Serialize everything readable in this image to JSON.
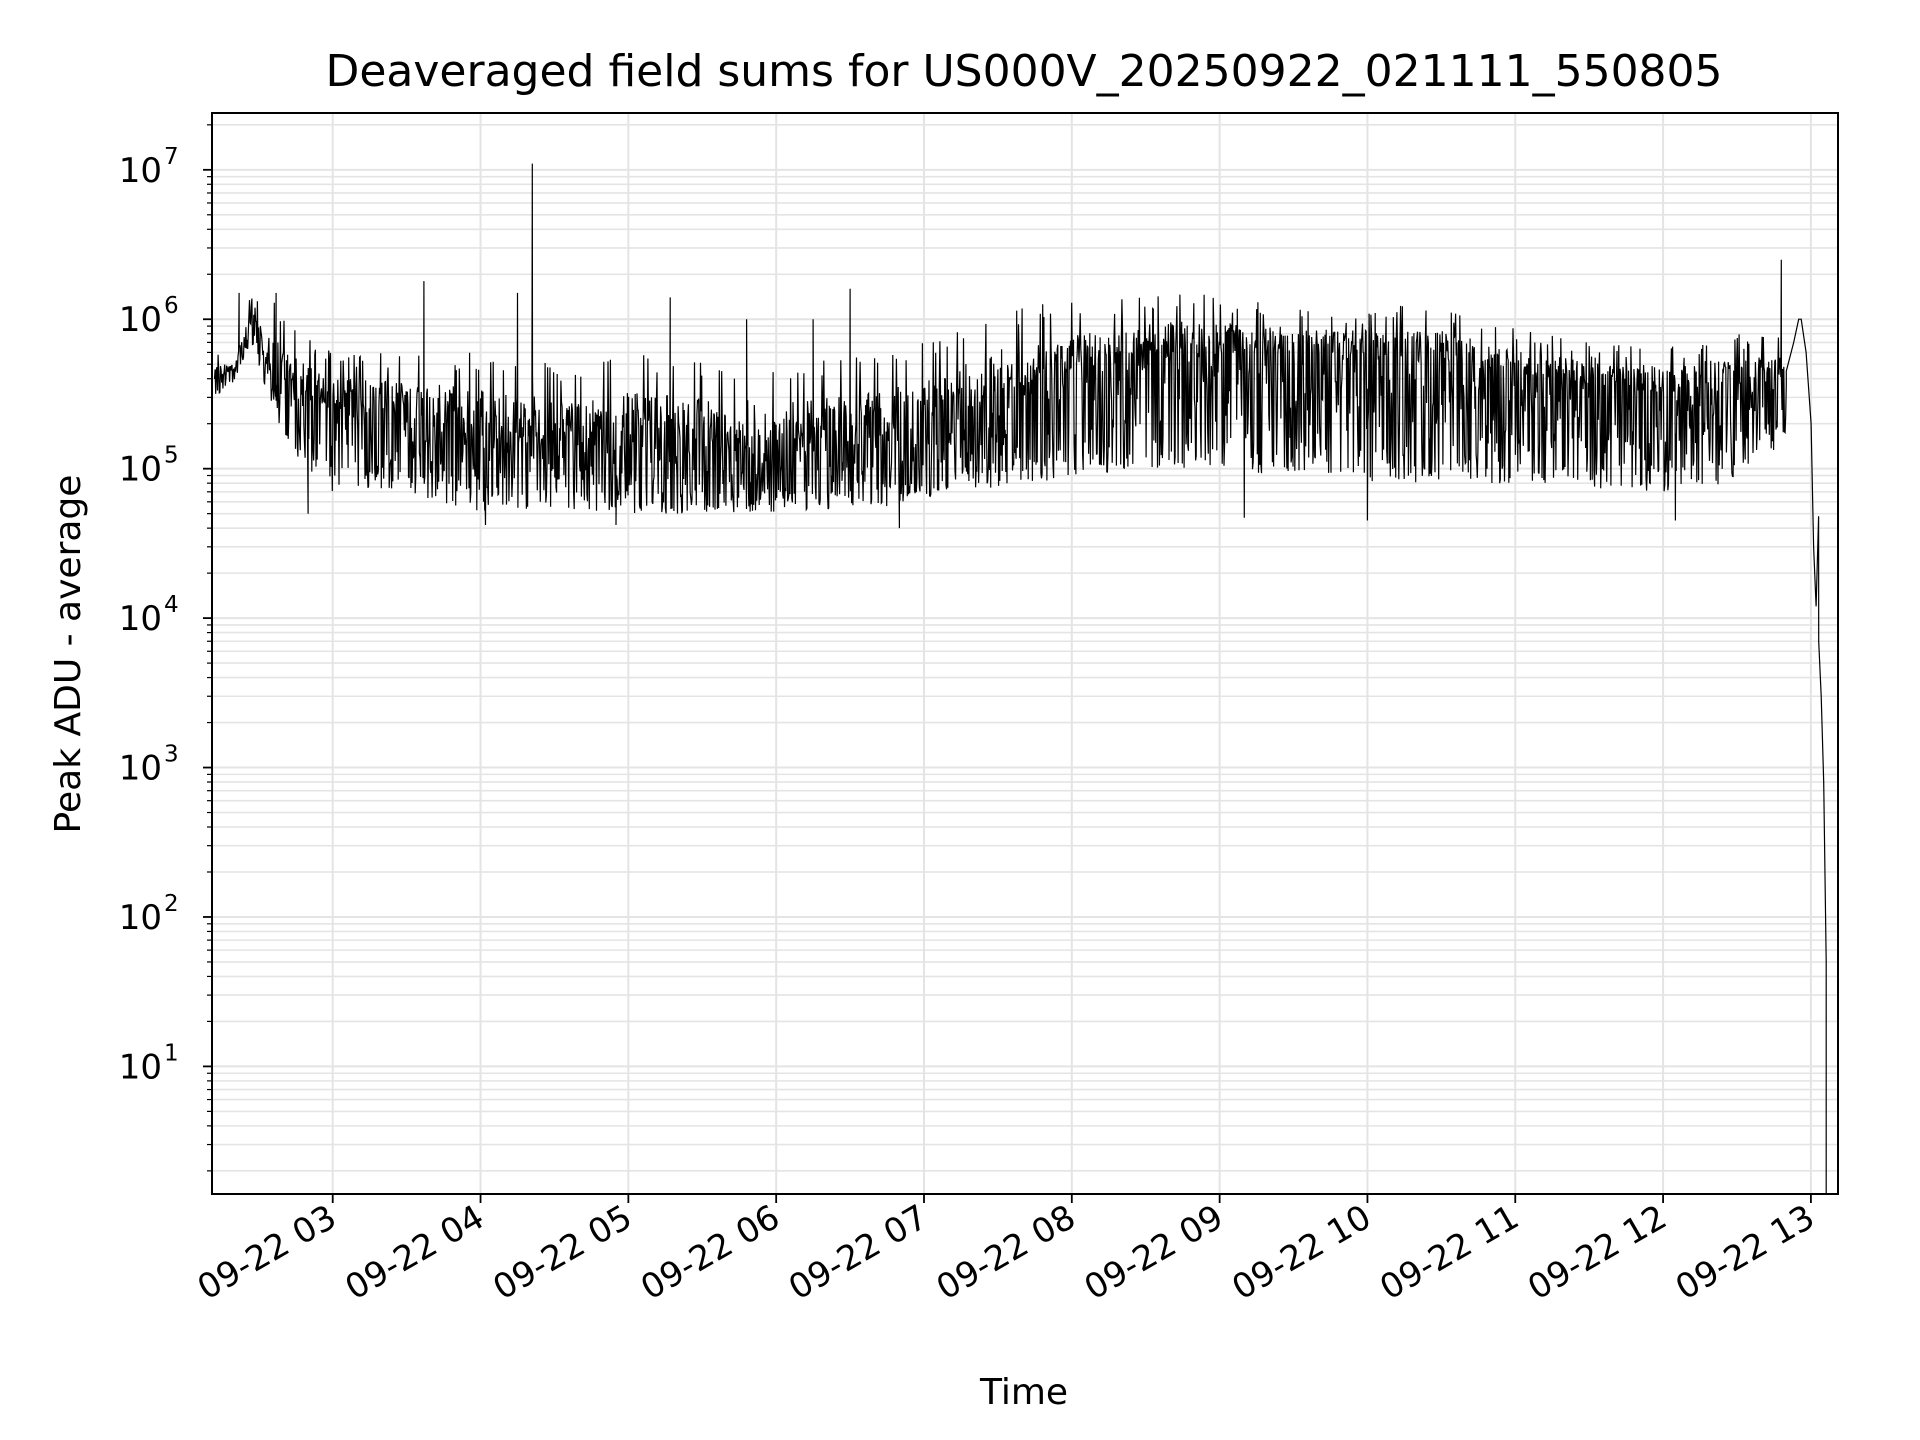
{
  "chart_data": {
    "type": "line",
    "title": "Deaveraged field sums for US000V_20250922_021111_550805",
    "xlabel": "Time",
    "ylabel": "Peak ADU - average",
    "yscale": "log",
    "xlim": [
      "2025-09-22 02:11",
      "2025-09-22 13:11"
    ],
    "ylim": [
      1.4,
      24000000
    ],
    "grid": "major and minor, both axes",
    "x_ticks": [
      "09-22 03",
      "09-22 04",
      "09-22 05",
      "09-22 06",
      "09-22 07",
      "09-22 08",
      "09-22 09",
      "09-22 10",
      "09-22 11",
      "09-22 12",
      "09-22 13"
    ],
    "y_ticks": [
      {
        "base": "10",
        "exp": "1",
        "value": 10
      },
      {
        "base": "10",
        "exp": "2",
        "value": 100
      },
      {
        "base": "10",
        "exp": "3",
        "value": 1000
      },
      {
        "base": "10",
        "exp": "4",
        "value": 10000
      },
      {
        "base": "10",
        "exp": "5",
        "value": 100000
      },
      {
        "base": "10",
        "exp": "6",
        "value": 1000000
      },
      {
        "base": "10",
        "exp": "7",
        "value": 10000000
      }
    ],
    "series": [
      {
        "color": "#000000",
        "envelope": [
          {
            "t": "2025-09-22 02:12",
            "median": 400000,
            "low": 300000,
            "high": 600000
          },
          {
            "t": "2025-09-22 02:20",
            "median": 450000,
            "low": 380000,
            "high": 550000
          },
          {
            "t": "2025-09-22 02:27",
            "median": 1000000,
            "low": 700000,
            "high": 1500000
          },
          {
            "t": "2025-09-22 02:35",
            "median": 450000,
            "low": 250000,
            "high": 1400000
          },
          {
            "t": "2025-09-22 02:45",
            "median": 350000,
            "low": 120000,
            "high": 900000
          },
          {
            "t": "2025-09-22 03:00",
            "median": 250000,
            "low": 70000,
            "high": 600000
          },
          {
            "t": "2025-09-22 03:30",
            "median": 220000,
            "low": 70000,
            "high": 600000
          },
          {
            "t": "2025-09-22 04:00",
            "median": 180000,
            "low": 50000,
            "high": 600000
          },
          {
            "t": "2025-09-22 04:30",
            "median": 150000,
            "low": 55000,
            "high": 500000
          },
          {
            "t": "2025-09-22 05:00",
            "median": 150000,
            "low": 50000,
            "high": 600000
          },
          {
            "t": "2025-09-22 06:00",
            "median": 140000,
            "low": 50000,
            "high": 500000
          },
          {
            "t": "2025-09-22 06:45",
            "median": 160000,
            "low": 55000,
            "high": 600000
          },
          {
            "t": "2025-09-22 07:15",
            "median": 250000,
            "low": 70000,
            "high": 900000
          },
          {
            "t": "2025-09-22 07:45",
            "median": 400000,
            "low": 80000,
            "high": 1300000
          },
          {
            "t": "2025-09-22 08:00",
            "median": 450000,
            "low": 90000,
            "high": 1300000
          },
          {
            "t": "2025-09-22 08:45",
            "median": 600000,
            "low": 100000,
            "high": 1500000
          },
          {
            "t": "2025-09-22 09:30",
            "median": 550000,
            "low": 90000,
            "high": 1300000
          },
          {
            "t": "2025-09-22 10:00",
            "median": 550000,
            "low": 80000,
            "high": 1200000
          },
          {
            "t": "2025-09-22 10:30",
            "median": 500000,
            "low": 80000,
            "high": 1300000
          },
          {
            "t": "2025-09-22 11:00",
            "median": 420000,
            "low": 80000,
            "high": 900000
          },
          {
            "t": "2025-09-22 11:30",
            "median": 350000,
            "low": 70000,
            "high": 700000
          },
          {
            "t": "2025-09-22 12:00",
            "median": 320000,
            "low": 70000,
            "high": 700000
          },
          {
            "t": "2025-09-22 12:30",
            "median": 350000,
            "low": 80000,
            "high": 800000
          },
          {
            "t": "2025-09-22 12:50",
            "median": 400000,
            "low": 150000,
            "high": 800000
          }
        ],
        "spikes": [
          {
            "t": "2025-09-22 02:22",
            "value": 1500000
          },
          {
            "t": "2025-09-22 02:37",
            "value": 1500000
          },
          {
            "t": "2025-09-22 03:37",
            "value": 1800000
          },
          {
            "t": "2025-09-22 04:15",
            "value": 1500000
          },
          {
            "t": "2025-09-22 04:21",
            "value": 11000000
          },
          {
            "t": "2025-09-22 05:17",
            "value": 1400000
          },
          {
            "t": "2025-09-22 05:48",
            "value": 1000000
          },
          {
            "t": "2025-09-22 06:15",
            "value": 1000000
          },
          {
            "t": "2025-09-22 06:30",
            "value": 1600000
          },
          {
            "t": "2025-09-22 12:48",
            "value": 2500000
          }
        ],
        "dips": [
          {
            "t": "2025-09-22 02:50",
            "value": 50000
          },
          {
            "t": "2025-09-22 04:02",
            "value": 42000
          },
          {
            "t": "2025-09-22 04:55",
            "value": 42000
          },
          {
            "t": "2025-09-22 06:50",
            "value": 40000
          },
          {
            "t": "2025-09-22 09:10",
            "value": 47000
          },
          {
            "t": "2025-09-22 10:00",
            "value": 45000
          },
          {
            "t": "2025-09-22 12:05",
            "value": 45000
          }
        ],
        "tail": [
          {
            "t": "2025-09-22 12:50",
            "value": 450000
          },
          {
            "t": "2025-09-22 12:53",
            "value": 700000
          },
          {
            "t": "2025-09-22 12:55",
            "value": 1000000
          },
          {
            "t": "2025-09-22 12:56",
            "value": 1000000
          },
          {
            "t": "2025-09-22 12:58",
            "value": 600000
          },
          {
            "t": "2025-09-22 13:00",
            "value": 200000
          },
          {
            "t": "2025-09-22 13:01",
            "value": 30000
          },
          {
            "t": "2025-09-22 13:02",
            "value": 12000
          },
          {
            "t": "2025-09-22 13:03",
            "value": 48000
          },
          {
            "t": "2025-09-22 13:03",
            "value": 7000
          },
          {
            "t": "2025-09-22 13:04",
            "value": 3000
          },
          {
            "t": "2025-09-22 13:05",
            "value": 800
          },
          {
            "t": "2025-09-22 13:06",
            "value": 50
          },
          {
            "t": "2025-09-22 13:06",
            "value": 1.4
          }
        ]
      }
    ]
  }
}
